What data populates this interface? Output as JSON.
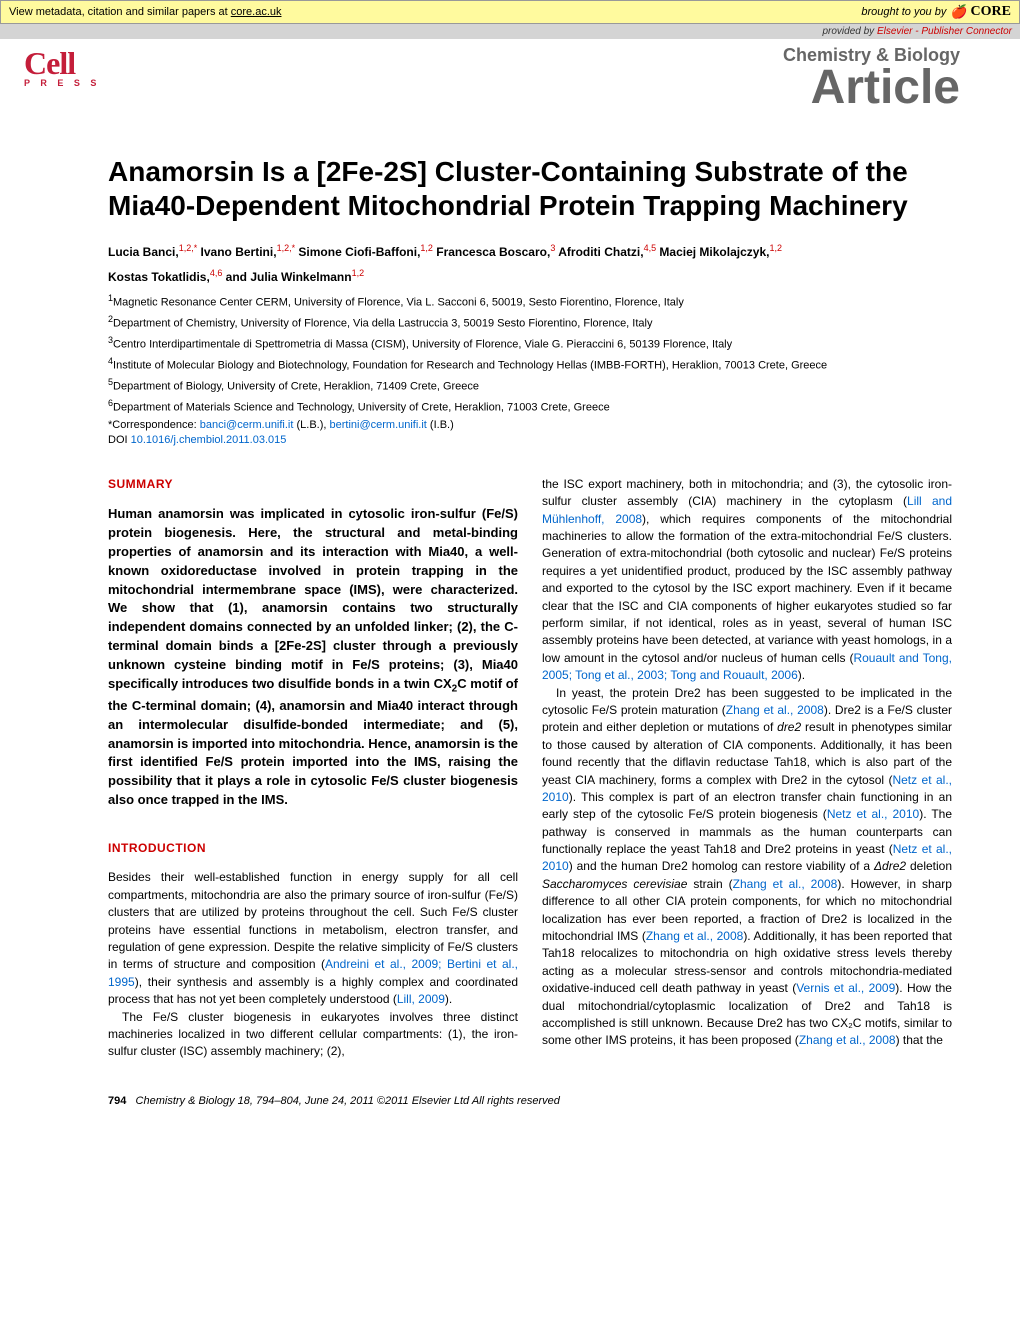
{
  "core_banner": {
    "left_text_prefix": "View metadata, citation and similar papers at ",
    "left_text_link": "core.ac.uk",
    "right_prefix": "brought to you by",
    "logo_text": "CORE"
  },
  "provided_banner": {
    "prefix": "provided by ",
    "source": "Elsevier - Publisher Connector"
  },
  "header": {
    "press_logo_main": "Cell",
    "press_logo_sub": "P R E S S",
    "journal_name": "Chemistry & Biology",
    "article_type": "Article"
  },
  "title": "Anamorsin Is a [2Fe-2S] Cluster-Containing Substrate of the Mia40-Dependent Mitochondrial Protein Trapping Machinery",
  "authors_line1": "Lucia Banci,|1,2,*| Ivano Bertini,|1,2,*| Simone Ciofi-Baffoni,|1,2| Francesca Boscaro,|3| Afroditi Chatzi,|4,5| Maciej Mikolajczyk,|1,2|",
  "authors_line2": "Kostas Tokatlidis,|4,6| and Julia Winkelmann|1,2|",
  "affiliations": [
    "|1|Magnetic Resonance Center CERM, University of Florence, Via L. Sacconi 6, 50019, Sesto Fiorentino, Florence, Italy",
    "|2|Department of Chemistry, University of Florence, Via della Lastruccia 3, 50019 Sesto Fiorentino, Florence, Italy",
    "|3|Centro Interdipartimentale di Spettrometria di Massa (CISM), University of Florence, Viale G. Pieraccini 6, 50139 Florence, Italy",
    "|4|Institute of Molecular Biology and Biotechnology, Foundation for Research and Technology Hellas (IMBB-FORTH), Heraklion, 70013 Crete, Greece",
    "|5|Department of Biology, University of Crete, Heraklion, 71409 Crete, Greece",
    "|6|Department of Materials Science and Technology, University of Crete, Heraklion, 71003 Crete, Greece"
  ],
  "correspondence": {
    "prefix": "*Correspondence: ",
    "email1": "banci@cerm.unifi.it",
    "name1": " (L.B.), ",
    "email2": "bertini@cerm.unifi.it",
    "name2": " (I.B.)"
  },
  "doi": {
    "prefix": "DOI ",
    "link": "10.1016/j.chembiol.2011.03.015"
  },
  "summary": {
    "heading": "SUMMARY",
    "text": "Human anamorsin was implicated in cytosolic iron-sulfur (Fe/S) protein biogenesis. Here, the structural and metal-binding properties of anamorsin and its interaction with Mia40, a well-known oxidoreductase involved in protein trapping in the mitochondrial intermembrane space (IMS), were characterized. We show that (1), anamorsin contains two structurally independent domains connected by an unfolded linker; (2), the C-terminal domain binds a [2Fe-2S] cluster through a previously unknown cysteine binding motif in Fe/S proteins; (3), Mia40 specifically introduces two disulfide bonds in a twin CX₂C motif of the C-terminal domain; (4), anamorsin and Mia40 interact through an intermolecular disulfide-bonded intermediate; and (5), anamorsin is imported into mitochondria. Hence, anamorsin is the first identified Fe/S protein imported into the IMS, raising the possibility that it plays a role in cytosolic Fe/S cluster biogenesis also once trapped in the IMS."
  },
  "introduction": {
    "heading": "INTRODUCTION",
    "para1_pre": "Besides their well-established function in energy supply for all cell compartments, mitochondria are also the primary source of iron-sulfur (Fe/S) clusters that are utilized by proteins throughout the cell. Such Fe/S cluster proteins have essential functions in metabolism, electron transfer, and regulation of gene expression. Despite the relative simplicity of Fe/S clusters in terms of structure and composition (",
    "para1_ref1": "Andreini et al., 2009; Bertini et al., 1995",
    "para1_mid": "), their synthesis and assembly is a highly complex and coordinated process that has not yet been completely understood (",
    "para1_ref2": "Lill, 2009",
    "para1_post": ").",
    "para2": "The Fe/S cluster biogenesis in eukaryotes involves three distinct machineries localized in two different cellular compartments: (1), the iron-sulfur cluster (ISC) assembly machinery; (2),",
    "right_para1_pre": "the ISC export machinery, both in mitochondria; and (3), the cytosolic iron-sulfur cluster assembly (CIA) machinery in the cytoplasm (",
    "right_para1_ref1": "Lill and Mühlenhoff, 2008",
    "right_para1_mid": "), which requires components of the mitochondrial machineries to allow the formation of the extra-mitochondrial Fe/S clusters. Generation of extra-mitochondrial (both cytosolic and nuclear) Fe/S proteins requires a yet unidentified product, produced by the ISC assembly pathway and exported to the cytosol by the ISC export machinery. Even if it became clear that the ISC and CIA components of higher eukaryotes studied so far perform similar, if not identical, roles as in yeast, several of human ISC assembly proteins have been detected, at variance with yeast homologs, in a low amount in the cytosol and/or nucleus of human cells (",
    "right_para1_ref2": "Rouault and Tong, 2005; Tong et al., 2003; Tong and Rouault, 2006",
    "right_para1_post": ").",
    "right_para2_pre": "In yeast, the protein Dre2 has been suggested to be implicated in the cytosolic Fe/S protein maturation (",
    "right_para2_ref1": "Zhang et al., 2008",
    "right_para2_mid1": "). Dre2 is a Fe/S cluster protein and either depletion or mutations of ",
    "right_para2_ital1": "dre2",
    "right_para2_mid2": " result in phenotypes similar to those caused by alteration of CIA components. Additionally, it has been found recently that the diflavin reductase Tah18, which is also part of the yeast CIA machinery, forms a complex with Dre2 in the cytosol (",
    "right_para2_ref2": "Netz et al., 2010",
    "right_para2_mid3": "). This complex is part of an electron transfer chain functioning in an early step of the cytosolic Fe/S protein biogenesis (",
    "right_para2_ref3": "Netz et al., 2010",
    "right_para2_mid4": "). The pathway is conserved in mammals as the human counterparts can functionally replace the yeast Tah18 and Dre2 proteins in yeast (",
    "right_para2_ref4": "Netz et al., 2010",
    "right_para2_mid5": ") and the human Dre2 homolog can restore viability of a ",
    "right_para2_ital2": "Δdre2",
    "right_para2_mid6": " deletion ",
    "right_para2_ital3": "Saccharomyces cerevisiae",
    "right_para2_mid7": " strain (",
    "right_para2_ref5": "Zhang et al., 2008",
    "right_para2_mid8": "). However, in sharp difference to all other CIA protein components, for which no mitochondrial localization has ever been reported, a fraction of Dre2 is localized in the mitochondrial IMS (",
    "right_para2_ref6": "Zhang et al., 2008",
    "right_para2_mid9": "). Additionally, it has been reported that Tah18 relocalizes to mitochondria on high oxidative stress levels thereby acting as a molecular stress-sensor and controls mitochondria-mediated oxidative-induced cell death pathway in yeast (",
    "right_para2_ref7": "Vernis et al., 2009",
    "right_para2_mid10": "). How the dual mitochondrial/cytoplasmic localization of Dre2 and Tah18 is accomplished is still unknown. Because Dre2 has two CX₂C motifs, similar to some other IMS proteins, it has been proposed (",
    "right_para2_ref8": "Zhang et al., 2008",
    "right_para2_post": ") that the"
  },
  "footer": {
    "page": "794",
    "journal": "Chemistry & Biology",
    "details": " 18, 794–804, June 24, 2011 ©2011 Elsevier Ltd All rights reserved"
  },
  "colors": {
    "core_bg": "#fffa9e",
    "provided_bg": "#d4d4d4",
    "cell_red": "#c41e3a",
    "heading_red": "#c00",
    "link_blue": "#0066cc",
    "header_grey": "#666"
  }
}
